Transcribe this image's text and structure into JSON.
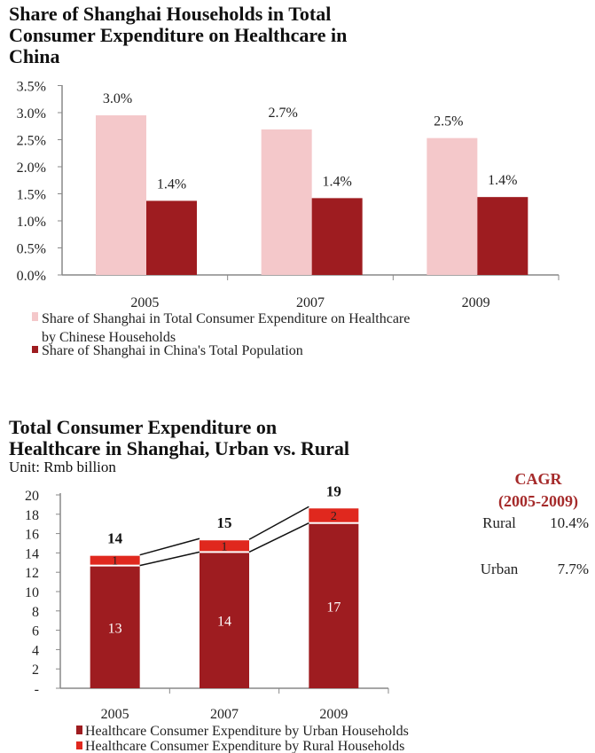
{
  "chart_data": [
    {
      "type": "bar",
      "title": [
        "Share of Shanghai Households in Total",
        "Consumer Expenditure on Healthcare  in",
        "China"
      ],
      "categories": [
        "2005",
        "2007",
        "2009"
      ],
      "ylim": [
        0,
        3.5
      ],
      "yticks": [
        "0.0%",
        "0.5%",
        "1.0%",
        "1.5%",
        "2.0%",
        "2.5%",
        "3.0%",
        "3.5%"
      ],
      "grid": false,
      "legend_placement": "bottom",
      "series": [
        {
          "name": "Share of Shanghai in Total Consumer Expenditure on Healthcare by Chinese Households",
          "legend_lines": [
            "Share of Shanghai in Total Consumer Expenditure on Healthcare",
            "by Chinese Households"
          ],
          "values": [
            2.95,
            2.69,
            2.53
          ],
          "labels": [
            "3.0%",
            "2.7%",
            "2.5%"
          ],
          "color": "#f4c8ca"
        },
        {
          "name": "Share of Shanghai in China's Total Population",
          "legend_lines": [
            "Share of Shanghai in China's Total Population"
          ],
          "values": [
            1.37,
            1.42,
            1.44
          ],
          "labels": [
            "1.4%",
            "1.4%",
            "1.4%"
          ],
          "color": "#9e1c20"
        }
      ]
    },
    {
      "type": "bar",
      "stacked": true,
      "title": [
        "Total Consumer Expenditure on",
        "Healthcare in Shanghai, Urban vs. Rural"
      ],
      "subtitle": "Unit: Rmb billion",
      "categories": [
        "2005",
        "2007",
        "2009"
      ],
      "ylim": [
        0,
        20
      ],
      "yticks": [
        "-",
        "2",
        "4",
        "6",
        "8",
        "10",
        "12",
        "14",
        "16",
        "18",
        "20"
      ],
      "grid": false,
      "legend_placement": "bottom",
      "totals": [
        "14",
        "15",
        "19"
      ],
      "series": [
        {
          "name": "Healthcare Consumer Expenditure by Urban Households",
          "values": [
            12.6,
            14.0,
            17.0
          ],
          "labels": [
            "13",
            "14",
            "17"
          ],
          "color": "#9e1c20"
        },
        {
          "name": "Healthcare Consumer Expenditure by Rural Households",
          "values": [
            1.1,
            1.3,
            1.6
          ],
          "labels": [
            "1",
            "1",
            "2"
          ],
          "color": "#e0281e"
        }
      ],
      "cagr": {
        "title": "CAGR",
        "period": "(2005-2009)",
        "color": "#a52a2a",
        "rows": [
          {
            "label": "Rural",
            "value": "10.4%"
          },
          {
            "label": "Urban",
            "value": "7.7%"
          }
        ]
      }
    }
  ]
}
